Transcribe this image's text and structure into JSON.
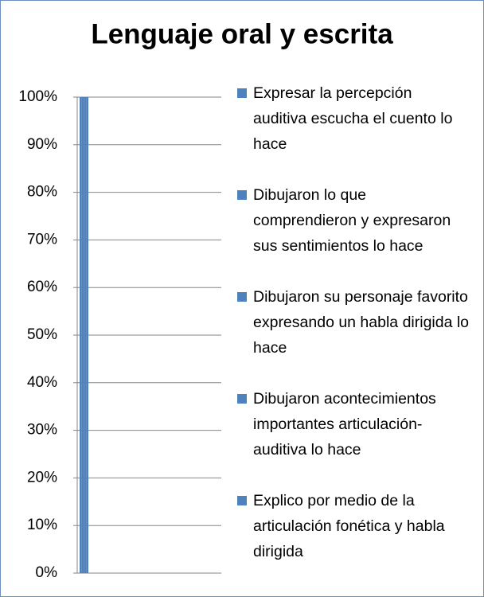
{
  "chart_data": {
    "type": "bar",
    "title": "Lenguaje oral y escrita",
    "categories": [
      null
    ],
    "series": [
      {
        "name": "Expresar la percepción auditiva escucha el cuento lo hace",
        "color": "#4f81bd",
        "values": [
          100
        ]
      },
      {
        "name": "Dibujaron lo que comprendieron y expresaron sus sentimientos lo hace",
        "color": "#4f81bd",
        "values": [
          100
        ]
      },
      {
        "name": "Dibujaron su personaje favorito expresando un habla dirigida lo hace",
        "color": "#4f81bd",
        "values": [
          100
        ]
      },
      {
        "name": "Dibujaron acontecimientos importantes articulación-auditiva lo hace",
        "color": "#4f81bd",
        "values": [
          100
        ]
      },
      {
        "name": "Explico por medio de la articulación fonética y habla dirigida",
        "color": "#4f81bd",
        "values": [
          100
        ]
      }
    ],
    "ylim": [
      0,
      100
    ],
    "yticks": [
      {
        "value": 0,
        "label": "0%"
      },
      {
        "value": 10,
        "label": "10%"
      },
      {
        "value": 20,
        "label": "20%"
      },
      {
        "value": 30,
        "label": "30%"
      },
      {
        "value": 40,
        "label": "40%"
      },
      {
        "value": 50,
        "label": "50%"
      },
      {
        "value": 60,
        "label": "60%"
      },
      {
        "value": 70,
        "label": "70%"
      },
      {
        "value": 80,
        "label": "80%"
      },
      {
        "value": 90,
        "label": "90%"
      },
      {
        "value": 100,
        "label": "100%"
      }
    ],
    "grid": true,
    "legend": "right"
  }
}
